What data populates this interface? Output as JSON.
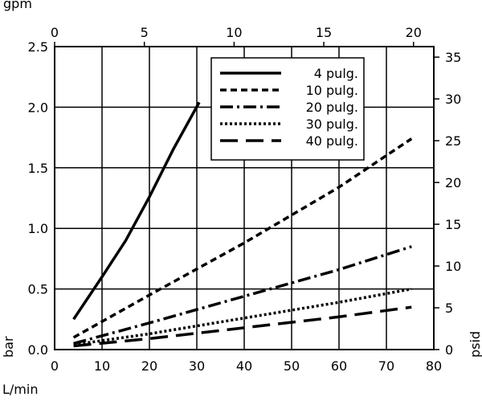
{
  "chart_data": {
    "type": "line",
    "xlabel": "L/min",
    "x2label": "gpm",
    "ylabel": "bar",
    "y2label": "psid",
    "xlim": [
      0,
      80
    ],
    "ylim": [
      0,
      2.5
    ],
    "x2lim": [
      0,
      21.13
    ],
    "y2lim": [
      0,
      36.26
    ],
    "xticks": [
      "0",
      "10",
      "20",
      "30",
      "40",
      "50",
      "60",
      "70",
      "80"
    ],
    "yticks": [
      "0.0",
      "0.5",
      "1.0",
      "1.5",
      "2.0",
      "2.5"
    ],
    "x2ticks": [
      "0",
      "5",
      "10",
      "15",
      "20"
    ],
    "y2ticks": [
      "0",
      "5",
      "10",
      "15",
      "20",
      "25",
      "30",
      "35"
    ],
    "grid": true,
    "legend_position": "top-right",
    "series": [
      {
        "name": "4 pulg.",
        "style": "solid",
        "x": [
          4,
          10,
          15,
          20,
          25,
          30.5
        ],
        "y": [
          0.25,
          0.6,
          0.9,
          1.26,
          1.65,
          2.04
        ]
      },
      {
        "name": "10 pulg.",
        "style": "dashed",
        "x": [
          4,
          20,
          40,
          60,
          75.3
        ],
        "y": [
          0.1,
          0.45,
          0.88,
          1.34,
          1.74
        ]
      },
      {
        "name": "20 pulg.",
        "style": "dashdot",
        "x": [
          4,
          20,
          40,
          60,
          75.3
        ],
        "y": [
          0.05,
          0.22,
          0.44,
          0.66,
          0.85
        ]
      },
      {
        "name": "30 pulg.",
        "style": "dotted",
        "x": [
          4,
          20,
          40,
          60,
          75.3
        ],
        "y": [
          0.04,
          0.13,
          0.26,
          0.39,
          0.5
        ]
      },
      {
        "name": "40 pulg.",
        "style": "longdash",
        "x": [
          4,
          20,
          40,
          60,
          75.3
        ],
        "y": [
          0.03,
          0.09,
          0.18,
          0.27,
          0.35
        ]
      }
    ]
  }
}
